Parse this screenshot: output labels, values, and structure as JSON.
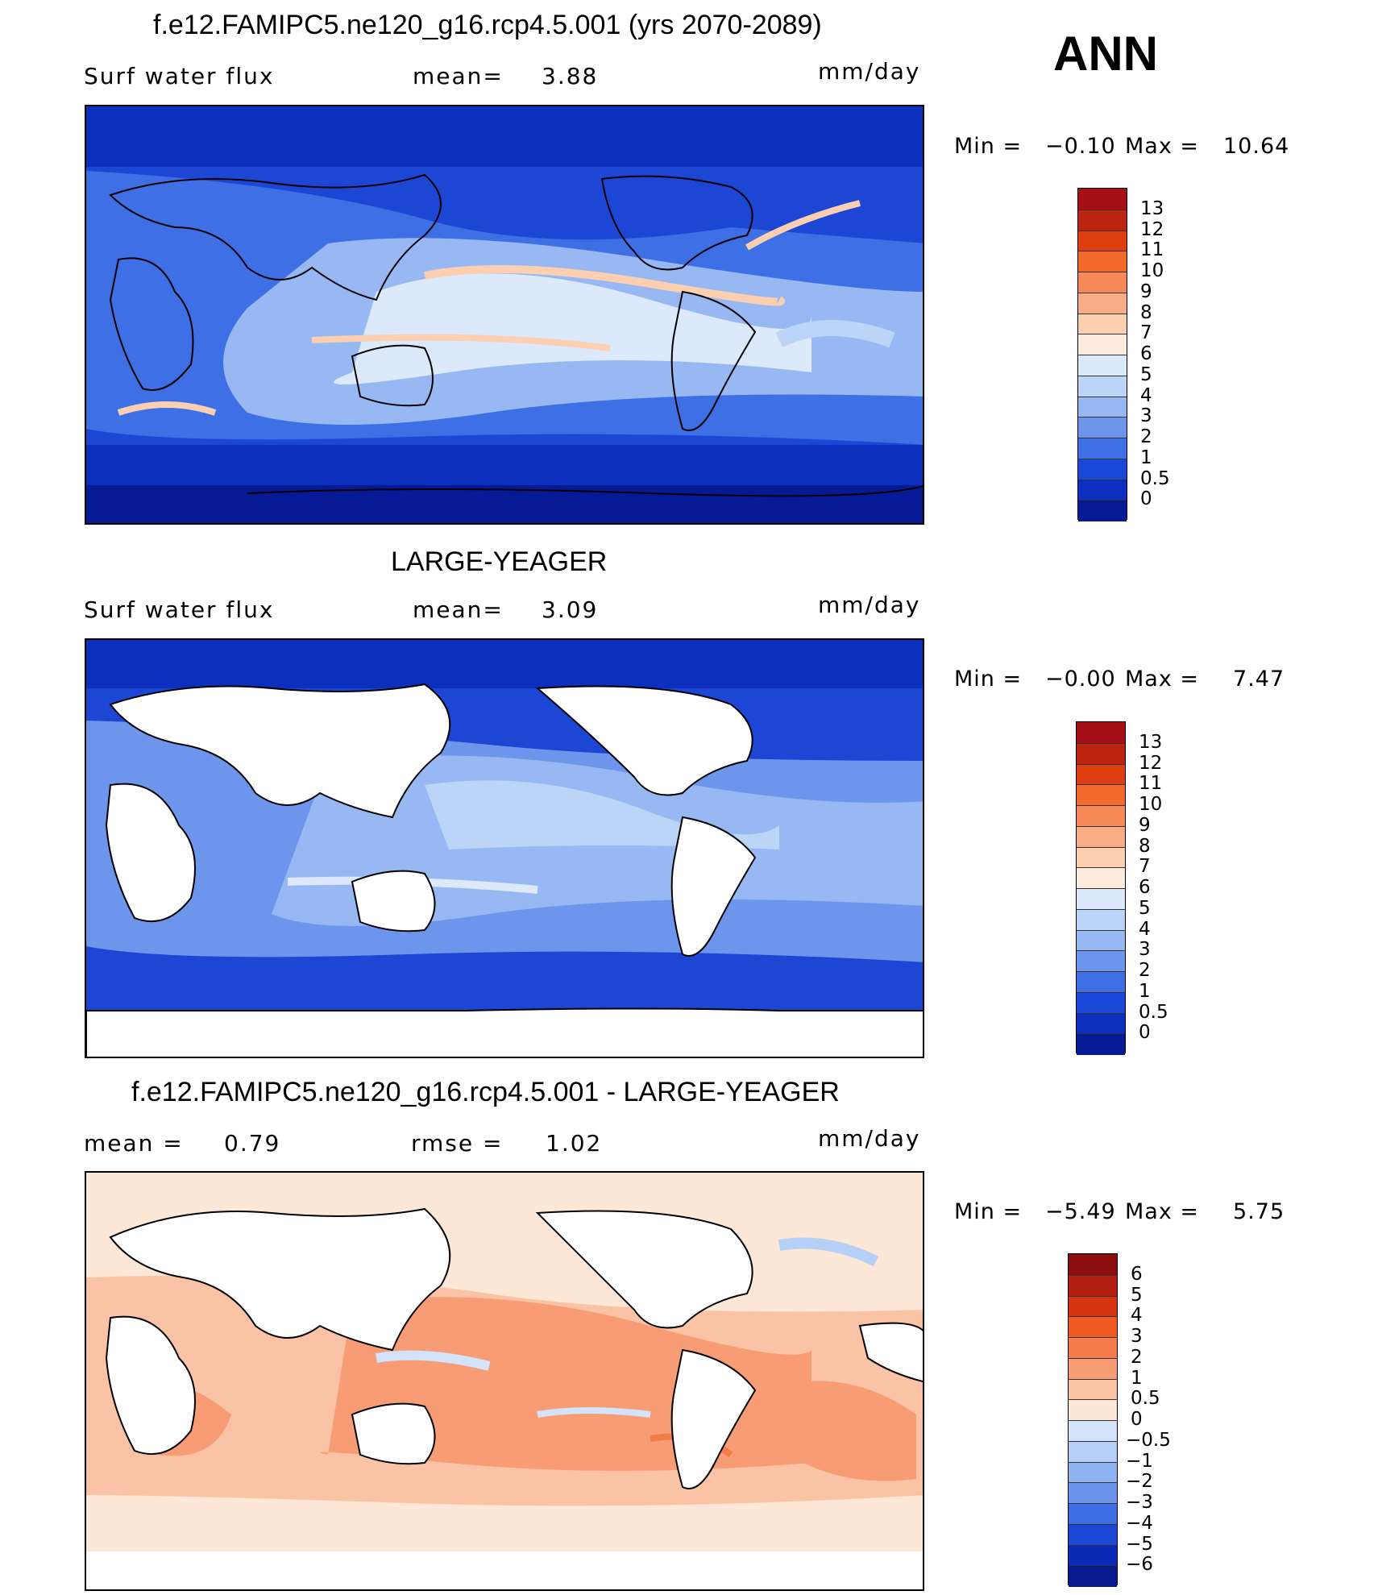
{
  "season": "ANN",
  "panels": [
    {
      "title": "f.e12.FAMIPC5.ne120_g16.rcp4.5.001 (yrs 2070-2089)",
      "left_label": "Surf water flux",
      "stat1": "mean=",
      "stat1_val": "3.88",
      "units": "mm/day",
      "min_label": "Min =",
      "min_val": "−0.10",
      "max_label": "Max =",
      "max_val": "10.64",
      "colorbar": {
        "labels": [
          "13",
          "12",
          "11",
          "10",
          "9",
          "8",
          "7",
          "6",
          "5",
          "4",
          "3",
          "2",
          "1",
          "0.5",
          "0"
        ],
        "colors": [
          "#a50f15",
          "#bc2410",
          "#dd3f10",
          "#f26a2c",
          "#f68a58",
          "#f9ad86",
          "#fbcfb0",
          "#fcebdd",
          "#dbe9fb",
          "#bcd4f8",
          "#98b8f3",
          "#6d95ec",
          "#3f6fe4",
          "#1a48d8",
          "#0c2fbd",
          "#061a96"
        ]
      }
    },
    {
      "title": "LARGE-YEAGER",
      "left_label": "Surf water flux",
      "stat1": "mean=",
      "stat1_val": "3.09",
      "units": "mm/day",
      "min_label": "Min =",
      "min_val": "−0.00",
      "max_label": "Max =",
      "max_val": "7.47",
      "colorbar": {
        "labels": [
          "13",
          "12",
          "11",
          "10",
          "9",
          "8",
          "7",
          "6",
          "5",
          "4",
          "3",
          "2",
          "1",
          "0.5",
          "0"
        ],
        "colors": [
          "#a50f15",
          "#bc2410",
          "#dd3f10",
          "#f26a2c",
          "#f68a58",
          "#f9ad86",
          "#fbcfb0",
          "#fcebdd",
          "#dbe9fb",
          "#bcd4f8",
          "#98b8f3",
          "#6d95ec",
          "#3f6fe4",
          "#1a48d8",
          "#0c2fbd",
          "#061a96"
        ]
      }
    },
    {
      "title": "f.e12.FAMIPC5.ne120_g16.rcp4.5.001 - LARGE-YEAGER",
      "left_label": "mean =",
      "left_val": "0.79",
      "stat1": "rmse =",
      "stat1_val": "1.02",
      "units": "mm/day",
      "min_label": "Min =",
      "min_val": "−5.49",
      "max_label": "Max =",
      "max_val": "5.75",
      "colorbar": {
        "labels": [
          "6",
          "5",
          "4",
          "3",
          "2",
          "1",
          "0.5",
          "0",
          "−0.5",
          "−1",
          "−2",
          "−3",
          "−4",
          "−5",
          "−6"
        ],
        "colors": [
          "#8b0f0f",
          "#b21e10",
          "#d6330f",
          "#ef5a23",
          "#f47c4a",
          "#f79c74",
          "#fac3a6",
          "#fde8d8",
          "#d3e3fb",
          "#b6cff7",
          "#8fb2f2",
          "#6a93ec",
          "#3f6ee4",
          "#1d48d6",
          "#0b2ab8",
          "#061a8e"
        ]
      }
    }
  ]
}
